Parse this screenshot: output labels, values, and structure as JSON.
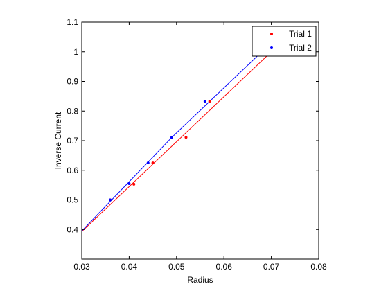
{
  "chart_data": {
    "type": "scatter",
    "title": "",
    "xlabel": "Radius",
    "ylabel": "Inverse Current",
    "xlim": [
      0.03,
      0.08
    ],
    "ylim": [
      0.3,
      1.1
    ],
    "xticks": [
      0.03,
      0.04,
      0.05,
      0.06,
      0.07,
      0.08
    ],
    "yticks": [
      0.4,
      0.5,
      0.6,
      0.7,
      0.8,
      0.9,
      1,
      1.1
    ],
    "xtick_labels": [
      "0.03",
      "0.04",
      "0.05",
      "0.06",
      "0.07",
      "0.08"
    ],
    "ytick_labels": [
      "0.4",
      "0.5",
      "0.6",
      "0.7",
      "0.8",
      "0.9",
      "1",
      "1.1"
    ],
    "grid": false,
    "legend_position": "top-right",
    "series": [
      {
        "name": "Trial 1",
        "color": "#ff0000",
        "marker": "dot",
        "x": [
          0.036,
          0.041,
          0.045,
          0.052,
          0.057
        ],
        "y": [
          0.5,
          0.553,
          0.625,
          0.711,
          0.833
        ],
        "fit": {
          "x": [
            0.03,
            0.07
          ],
          "y": [
            0.393,
            1.0
          ]
        }
      },
      {
        "name": "Trial 2",
        "color": "#0000ff",
        "marker": "dot",
        "x": [
          0.036,
          0.04,
          0.044,
          0.049,
          0.056
        ],
        "y": [
          0.5,
          0.555,
          0.625,
          0.711,
          0.833
        ],
        "fit": {
          "x": [
            0.03,
            0.049,
            0.068
          ],
          "y": [
            0.395,
            0.711,
            1.0
          ]
        }
      }
    ]
  }
}
